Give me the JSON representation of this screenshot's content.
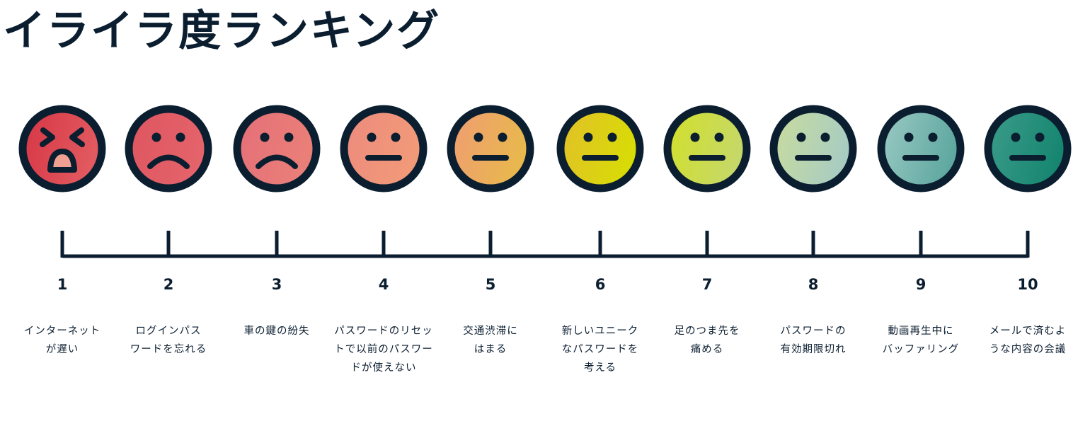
{
  "title": "イライラ度ランキング",
  "colors": {
    "outline": "#0b1e30"
  },
  "items": [
    {
      "rank": "1",
      "label": "インターネットが遅い",
      "lines": [
        "インターネット",
        "が遅い"
      ],
      "face": "crying-angry",
      "colors": [
        "#d63544",
        "#e25a60"
      ]
    },
    {
      "rank": "2",
      "label": "ログインパスワードを忘れる",
      "lines": [
        "ログインパス",
        "ワードを忘れる"
      ],
      "face": "sad",
      "colors": [
        "#dd5560",
        "#e5636a"
      ]
    },
    {
      "rank": "3",
      "label": "車の鍵の紛失",
      "lines": [
        "車の鍵の紛失"
      ],
      "face": "sad",
      "colors": [
        "#e46f78",
        "#ea7f78"
      ]
    },
    {
      "rank": "4",
      "label": "パスワードのリセットで以前のパスワードが使えない",
      "lines": [
        "パスワードのリセッ",
        "トで以前のパスワー",
        "ドが使えない"
      ],
      "face": "neutral",
      "colors": [
        "#ed8a7e",
        "#f19a78"
      ]
    },
    {
      "rank": "5",
      "label": "交通渋滞にはまる",
      "lines": [
        "交通渋滞に",
        "はまる"
      ],
      "face": "neutral",
      "colors": [
        "#f09c74",
        "#e8b84c"
      ]
    },
    {
      "rank": "6",
      "label": "新しいユニークなパスワードを考える",
      "lines": [
        "新しいユニーク",
        "なパスワードを",
        "考える"
      ],
      "face": "neutral",
      "colors": [
        "#e2bf2a",
        "#d8dc06"
      ]
    },
    {
      "rank": "7",
      "label": "足のつま先を痛める",
      "lines": [
        "足のつま先を",
        "痛める"
      ],
      "face": "neutral",
      "colors": [
        "#d2e028",
        "#c6d868"
      ]
    },
    {
      "rank": "8",
      "label": "パスワードの有効期限切れ",
      "lines": [
        "パスワードの",
        "有効期限切れ"
      ],
      "face": "neutral",
      "colors": [
        "#cadc9c",
        "#a8ccc2"
      ]
    },
    {
      "rank": "9",
      "label": "動画再生中にバッファリング",
      "lines": [
        "動画再生中に",
        "バッファリング"
      ],
      "face": "neutral",
      "colors": [
        "#9ccac4",
        "#5ea8a0"
      ]
    },
    {
      "rank": "10",
      "label": "メールで済むような内容の会議",
      "lines": [
        "メールで済むよ",
        "うな内容の会議"
      ],
      "face": "neutral",
      "colors": [
        "#3c9c8a",
        "#168670"
      ]
    }
  ]
}
